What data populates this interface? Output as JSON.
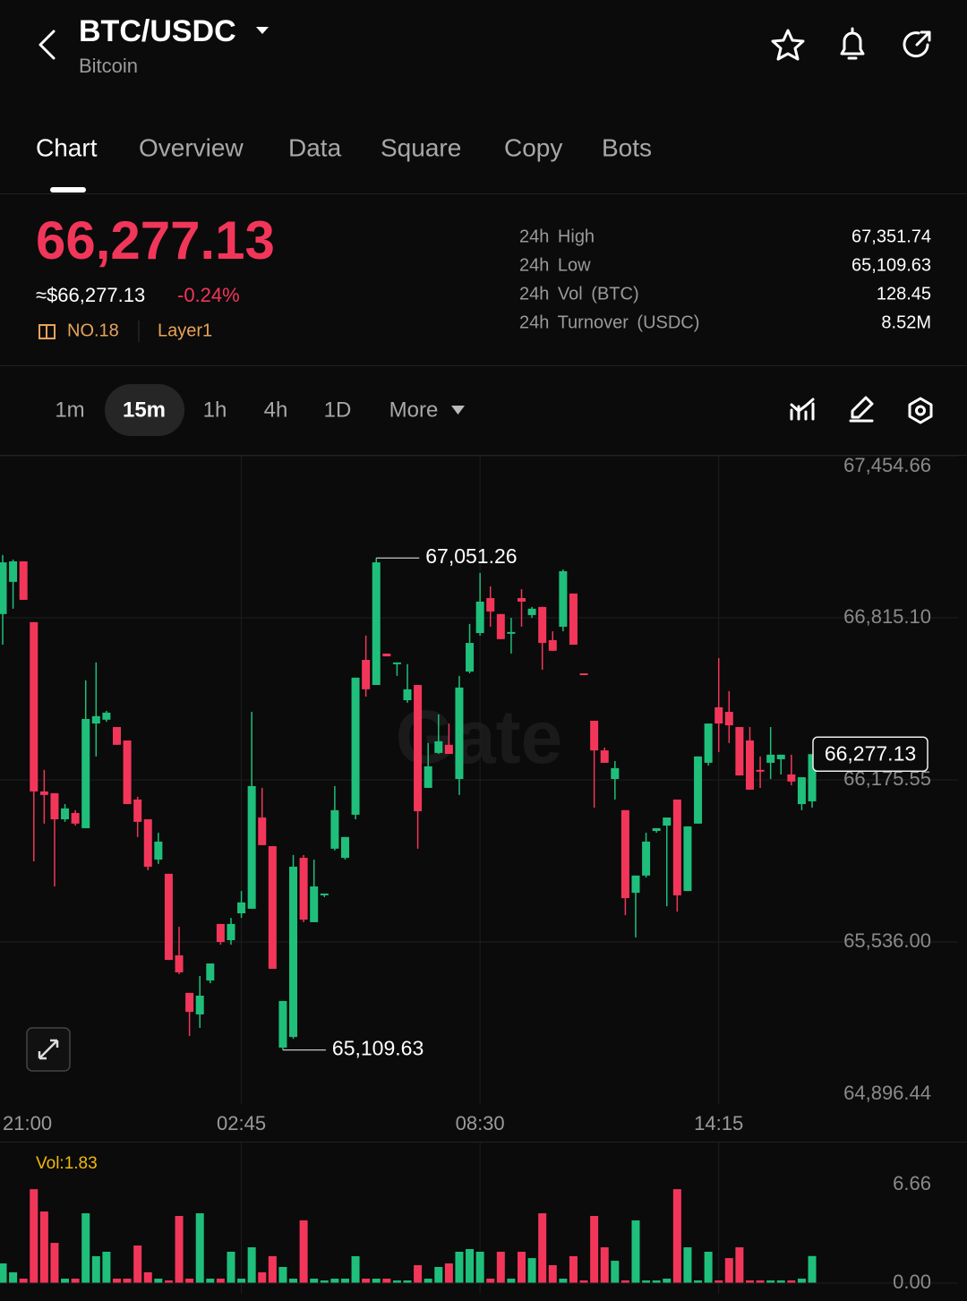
{
  "header": {
    "title": "BTC/USDC",
    "subtitle": "Bitcoin"
  },
  "tabs": [
    "Chart",
    "Overview",
    "Data",
    "Square",
    "Copy",
    "Bots"
  ],
  "ticker": {
    "price": "66,277.13",
    "fiat_price": "≈$66,277.13",
    "change": "-0.24%",
    "rank": "NO.18",
    "tag": "Layer1"
  },
  "stats": [
    {
      "label": "24h High",
      "value": "67,351.74"
    },
    {
      "label": "24h Low",
      "value": "65,109.63"
    },
    {
      "label": "24h Vol (BTC)",
      "value": "128.45"
    },
    {
      "label": "24h Turnover (USDC)",
      "value": "8.52M"
    }
  ],
  "intervals": [
    "1m",
    "15m",
    "1h",
    "4h",
    "1D",
    "More"
  ],
  "chart_data": {
    "type": "candlestick",
    "up_color": "#1fbf7b",
    "down_color": "#f2365a",
    "categories": [
      "21:00",
      null,
      null,
      null,
      null,
      null,
      null,
      null,
      null,
      null,
      null,
      null,
      null,
      null,
      null,
      null,
      null,
      null,
      null,
      null,
      null,
      null,
      null,
      "02:45",
      null,
      null,
      null,
      null,
      null,
      null,
      null,
      null,
      null,
      null,
      null,
      null,
      null,
      null,
      null,
      null,
      null,
      null,
      null,
      null,
      null,
      null,
      "08:30",
      null,
      null,
      null,
      null,
      null,
      null,
      null,
      null,
      null,
      null,
      null,
      null,
      null,
      null,
      null,
      null,
      null,
      null,
      null,
      null,
      null,
      null,
      "14:15",
      null,
      null,
      null,
      null,
      null,
      null,
      null,
      null,
      null
    ],
    "open": [
      66830,
      66957,
      67038,
      66798,
      66130,
      66123,
      66020,
      66045,
      65985,
      66398,
      66413,
      66384,
      66331,
      66098,
      66020,
      65861,
      65805,
      65483,
      65335,
      65250,
      65384,
      65607,
      65543,
      65649,
      65667,
      66027,
      65914,
      65119,
      65161,
      65868,
      65614,
      65720,
      65904,
      65868,
      66038,
      66649,
      66550,
      66674,
      66632,
      66490,
      66550,
      66144,
      66282,
      66314,
      66179,
      66603,
      66755,
      66893,
      66830,
      66752,
      66893,
      66826,
      66858,
      66727,
      66780,
      66911,
      66596,
      66409,
      66292,
      66179,
      66056,
      65730,
      65798,
      65974,
      65995,
      66098,
      65737,
      66003,
      66243,
      66462,
      66444,
      66384,
      66331,
      66215,
      66243,
      66257,
      66197,
      66080,
      66091
    ],
    "high": [
      67063,
      67045,
      67038,
      66798,
      66215,
      66123,
      66080,
      66056,
      66568,
      66639,
      66448,
      66384,
      66331,
      66109,
      66020,
      65967,
      65805,
      65596,
      65335,
      65402,
      65451,
      65607,
      65631,
      65737,
      66444,
      66144,
      65914,
      65303,
      65879,
      65879,
      65861,
      65727,
      66151,
      65950,
      66579,
      66745,
      67051.26,
      66674,
      66639,
      66632,
      66550,
      66321,
      66434,
      66398,
      66586,
      66791,
      66992,
      66939,
      66830,
      66815,
      66928,
      66858,
      66858,
      66762,
      67006,
      66911,
      66596,
      66409,
      66303,
      66250,
      66056,
      65798,
      65967,
      65985,
      66027,
      66098,
      65992,
      66268,
      66398,
      66656,
      66526,
      66384,
      66384,
      66268,
      66384,
      66275,
      66275,
      66186,
      66277.13
    ],
    "low": [
      66709,
      66851,
      66886,
      65854,
      66003,
      65755,
      66010,
      65995,
      65985,
      66268,
      66405,
      66314,
      66080,
      65950,
      65819,
      65844,
      65465,
      65409,
      65165,
      65197,
      65373,
      65525,
      65525,
      65631,
      65667,
      65918,
      65430,
      65109.63,
      65154,
      65614,
      65614,
      65713,
      65897,
      65861,
      66020,
      66504,
      66550,
      66663,
      66586,
      66480,
      65904,
      66144,
      66278,
      66278,
      66116,
      66596,
      66745,
      66780,
      66731,
      66674,
      66780,
      66815,
      66610,
      66685,
      66762,
      66709,
      66589,
      66066,
      66243,
      66098,
      65642,
      65554,
      65790,
      65967,
      65677,
      65656,
      65737,
      66003,
      66232,
      66285,
      66321,
      66193,
      66137,
      66144,
      66179,
      66197,
      66154,
      66056,
      66066
    ],
    "close": [
      67034,
      67038,
      66886,
      66130,
      66116,
      66020,
      66063,
      66003,
      66416,
      66427,
      66441,
      66314,
      66080,
      66010,
      65833,
      65932,
      65465,
      65416,
      65260,
      65324,
      65451,
      65536,
      65607,
      65692,
      66151,
      65918,
      65430,
      65303,
      65833,
      65624,
      65755,
      65727,
      66056,
      65950,
      66579,
      66533,
      67034,
      66663,
      66639,
      66533,
      66052,
      66229,
      66328,
      66278,
      66540,
      66716,
      66879,
      66840,
      66731,
      66759,
      66879,
      66851,
      66716,
      66685,
      66999,
      66709,
      66589,
      66292,
      66243,
      66222,
      65709,
      65798,
      65932,
      65985,
      66027,
      65720,
      65992,
      66268,
      66398,
      66398,
      66391,
      66193,
      66137,
      66208,
      66275,
      66275,
      66169,
      66186,
      66277.13
    ],
    "ylim": [
      64896.44,
      67454.66
    ],
    "yticks": [
      {
        "value": 67454.66,
        "label": "67,454.66"
      },
      {
        "value": 66815.1,
        "label": "66,815.10"
      },
      {
        "value": 66175.55,
        "label": "66,175.55"
      },
      {
        "value": 65536.0,
        "label": "65,536.00"
      },
      {
        "value": 64896.44,
        "label": "64,896.44"
      }
    ],
    "annotations": [
      {
        "value": 67051.26,
        "label": "67,051.26"
      },
      {
        "value": 65109.63,
        "label": "65,109.63"
      }
    ],
    "last_price": {
      "value": 66277.13,
      "label": "66,277.13"
    },
    "watermark": "Gate",
    "volume": {
      "label": "Vol:1.83",
      "ylim": [
        0,
        6.66
      ],
      "yticks": [
        6.66,
        {
          "value": 0,
          "label": "0.00"
        }
      ],
      "values": [
        1.33,
        0.73,
        0.3,
        6.35,
        4.84,
        2.72,
        0.3,
        0.3,
        4.72,
        1.82,
        2.12,
        0.3,
        0.3,
        2.54,
        0.73,
        0.3,
        0.18,
        4.54,
        0.3,
        4.72,
        0.3,
        0.3,
        2.12,
        0.3,
        2.42,
        0.73,
        1.82,
        1.09,
        0.3,
        4.24,
        0.3,
        0.18,
        0.3,
        0.3,
        1.82,
        0.3,
        0.3,
        0.3,
        0.18,
        0.18,
        1.21,
        0.3,
        1.09,
        1.33,
        2.12,
        2.3,
        2.12,
        0.3,
        2.12,
        0.3,
        2.12,
        1.69,
        4.72,
        1.21,
        0.3,
        1.82,
        0.18,
        4.54,
        2.42,
        1.51,
        0.18,
        4.24,
        0.18,
        0.18,
        0.3,
        6.35,
        2.42,
        0.18,
        2.12,
        0.18,
        1.69,
        2.42,
        0.18,
        0.18,
        0.18,
        0.18,
        0.18,
        0.3,
        1.83
      ]
    }
  }
}
